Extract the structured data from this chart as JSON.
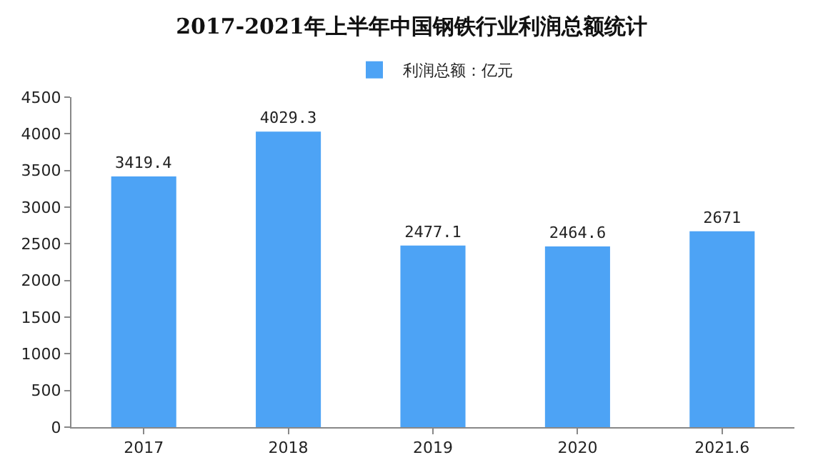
{
  "chart_data": {
    "type": "bar",
    "title": "2017-2021年上半年中国钢铁行业利润总额统计",
    "categories": [
      "2017",
      "2018",
      "2019",
      "2020",
      "2021.6"
    ],
    "series": [
      {
        "name": "利润总额：亿元",
        "color": "#4da3f5",
        "values": [
          3419.4,
          4029.3,
          2477.1,
          2464.6,
          2671
        ]
      }
    ],
    "ylim": [
      0,
      4500
    ],
    "yticks": [
      0,
      500,
      1000,
      1500,
      2000,
      2500,
      3000,
      3500,
      4000,
      4500
    ],
    "grid": false,
    "legend": "top",
    "data_labels": true
  }
}
